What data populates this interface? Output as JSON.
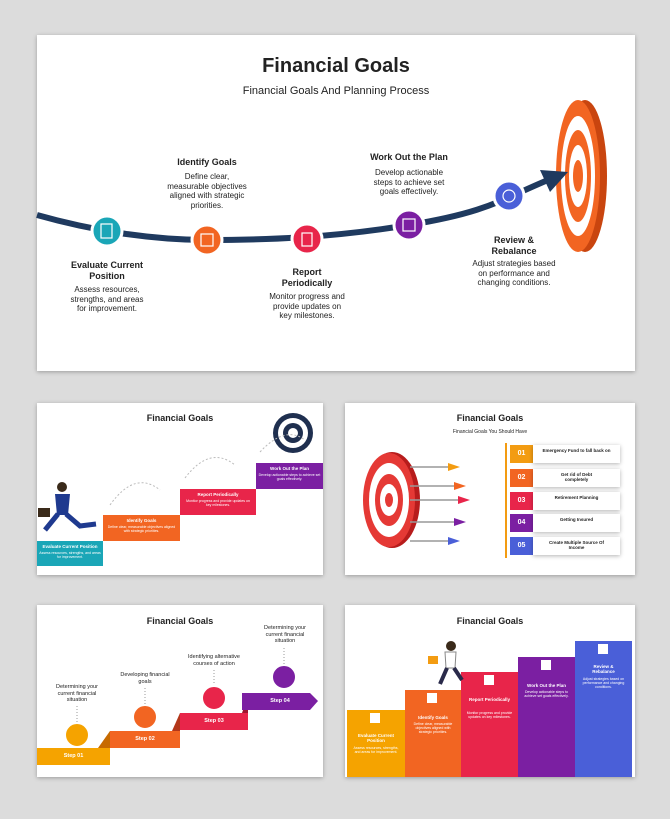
{
  "slides": [
    {
      "title": "Financial Goals",
      "subtitle": "Financial Goals And Planning Process",
      "steps": [
        {
          "title": "Evaluate Current Position",
          "text": "Assess resources, strengths, and areas for improvement."
        },
        {
          "title": "Identify Goals",
          "text": "Define clear, measurable objectives aligned with strategic priorities."
        },
        {
          "title": "Report Periodically",
          "text": "Monitor progress and provide updates on key milestones."
        },
        {
          "title": "Work Out the Plan",
          "text": "Develop actionable steps to achieve set goals effectively."
        },
        {
          "title": "Review & Rebalance",
          "text": "Adjust strategies based on performance and changing conditions."
        }
      ]
    },
    {
      "title": "Financial Goals",
      "steps": [
        {
          "title": "Evaluate Current Position",
          "text": "Assess resources, strengths, and areas for improvement."
        },
        {
          "title": "Identify Goals",
          "text": "Define clear, measurable objectives aligned with strategic priorities."
        },
        {
          "title": "Report Periodically",
          "text": "Monitor progress and provide updates on key milestones."
        },
        {
          "title": "Work Out the Plan",
          "text": "Develop actionable steps to achieve set goals effectively."
        }
      ]
    },
    {
      "title": "Financial Goals",
      "subtitle": "Financial Goals You Should Have",
      "items": [
        {
          "number": "01",
          "label": "Emergency Fund to fall back on"
        },
        {
          "number": "02",
          "label": "Get rid of Debt completely"
        },
        {
          "number": "03",
          "label": "Retirement Planning"
        },
        {
          "number": "04",
          "label": "Getting Insured"
        },
        {
          "number": "05",
          "label": "Create Multiple Source Of Income"
        }
      ]
    },
    {
      "title": "Financial Goals",
      "steps": [
        {
          "title": "Step 01",
          "text": "Determining your current financial situation"
        },
        {
          "title": "Step 02",
          "text": "Developing financial goals"
        },
        {
          "title": "Step 03",
          "text": "Identifying alternative courses of action"
        },
        {
          "title": "Step 04",
          "text": "Determining your current financial situation"
        }
      ]
    },
    {
      "title": "Financial Goals",
      "steps": [
        {
          "title": "Evaluate Current Position",
          "text": "Assess resources, strengths, and areas for improvement."
        },
        {
          "title": "Identify Goals",
          "text": "Define clear, measurable objectives aligned with strategic priorities."
        },
        {
          "title": "Report Periodically",
          "text": "Monitor progress and provide updates on key milestones."
        },
        {
          "title": "Work Out the Plan",
          "text": "Develop actionable steps to achieve set goals effectively."
        },
        {
          "title": "Review & Rebalance",
          "text": "Adjust strategies based on performance and changing conditions."
        }
      ]
    }
  ]
}
